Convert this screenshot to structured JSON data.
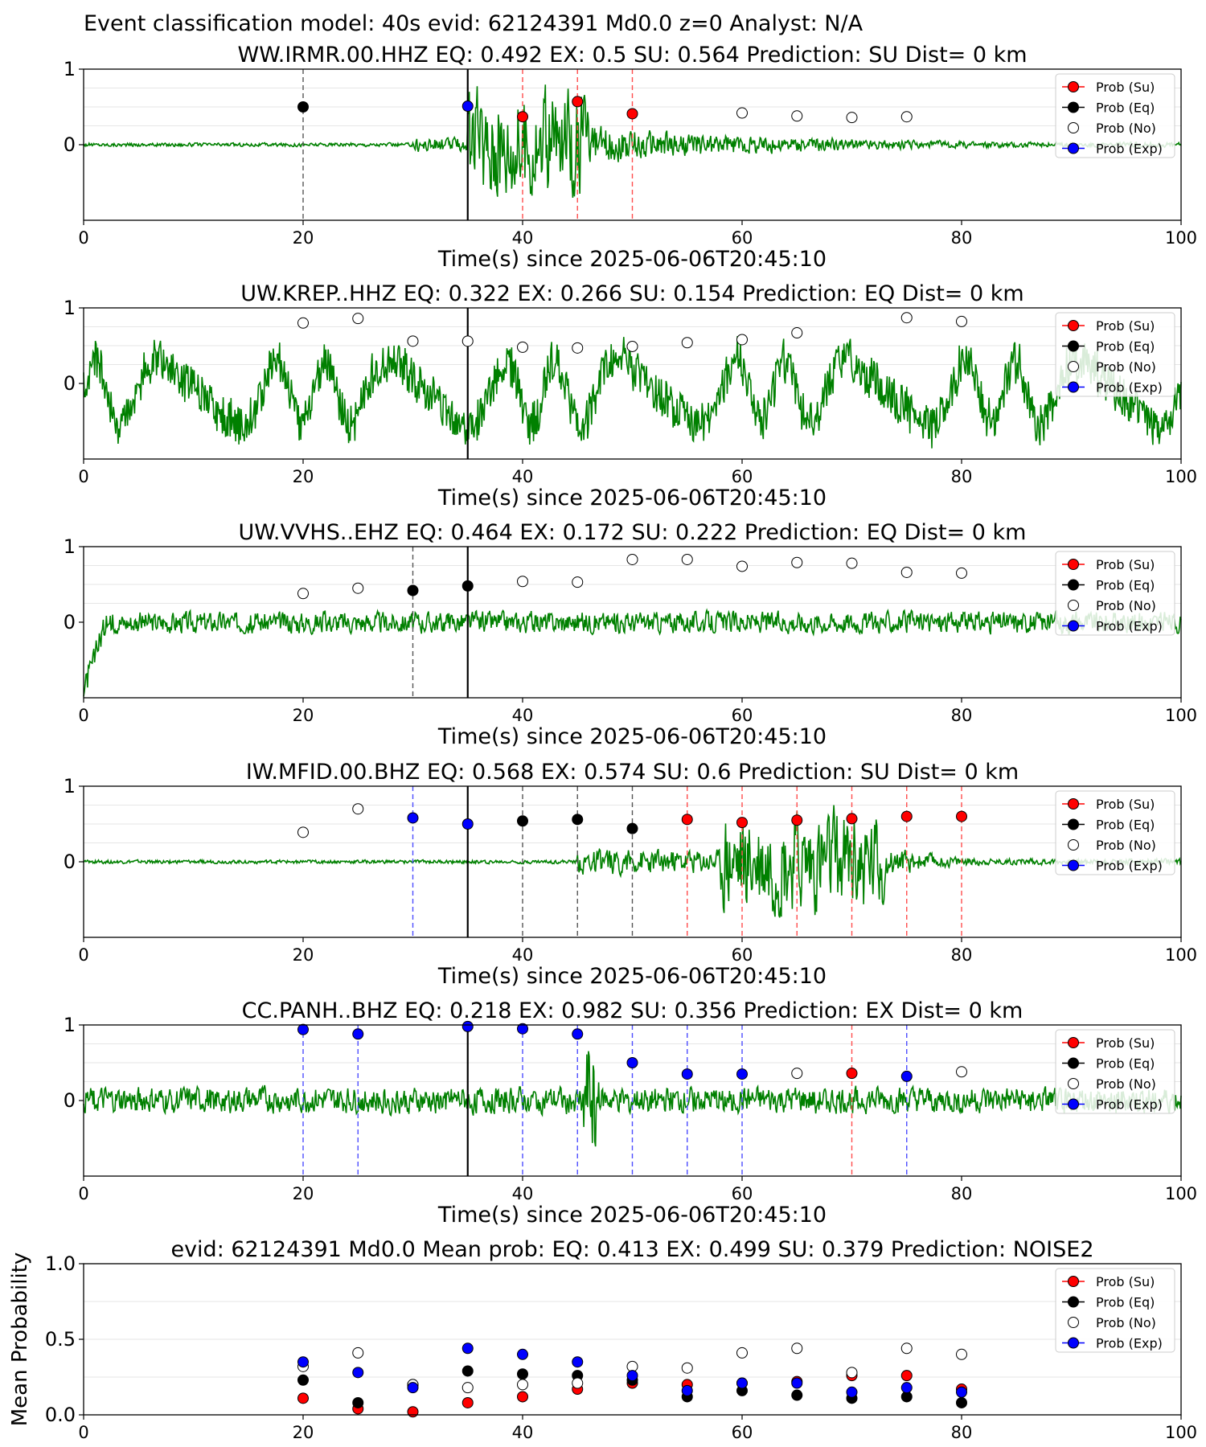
{
  "figure": {
    "suptitle": "Event classification model: 40s evid: 62124391 Md0.0 z=0 Analyst: N/A",
    "legend_labels": [
      "Prob (Su)",
      "Prob (Eq)",
      "Prob (No)",
      "Prob (Exp)"
    ],
    "colors": {
      "su": "#ff0000",
      "eq": "#000000",
      "no": "#ffffff",
      "exp": "#0000ff",
      "trace": "#008000",
      "trace_faded": "#b9dcb9"
    }
  },
  "chart_data": [
    {
      "type": "scatter",
      "title": "WW.IRMR.00.HHZ   EQ: 0.492  EX: 0.5  SU: 0.564   Prediction: SU    Dist= 0 km",
      "xlabel": "Time(s) since 2025-06-06T20:45:10",
      "xlim": [
        0,
        100
      ],
      "xticks": [
        0,
        20,
        40,
        60,
        80,
        100
      ],
      "ylim": [
        -1,
        1
      ],
      "yticks": [
        0,
        1
      ],
      "origin_line_x": 35,
      "trace": "green waveform, quiet until ~30 s, strong burst 35-45 s, decaying coda to ~75 s",
      "points": [
        {
          "x": 20,
          "y": 0.5,
          "class": "eq"
        },
        {
          "x": 35,
          "y": 0.51,
          "class": "exp"
        },
        {
          "x": 40,
          "y": 0.37,
          "class": "su"
        },
        {
          "x": 45,
          "y": 0.57,
          "class": "su"
        },
        {
          "x": 50,
          "y": 0.41,
          "class": "su"
        },
        {
          "x": 60,
          "y": 0.42,
          "class": "no"
        },
        {
          "x": 65,
          "y": 0.38,
          "class": "no"
        },
        {
          "x": 70,
          "y": 0.36,
          "class": "no"
        },
        {
          "x": 75,
          "y": 0.37,
          "class": "no"
        }
      ],
      "legend": [
        "Prob (Su)",
        "Prob (Eq)",
        "Prob (No)",
        "Prob (Exp)"
      ]
    },
    {
      "type": "scatter",
      "title": "UW.KREP..HHZ   EQ: 0.322  EX: 0.266  SU: 0.154   Prediction: EQ    Dist= 0 km",
      "xlabel": "Time(s) since 2025-06-06T20:45:10",
      "xlim": [
        0,
        100
      ],
      "xticks": [
        0,
        20,
        40,
        60,
        80,
        100
      ],
      "ylim": [
        -1,
        1
      ],
      "yticks": [
        0,
        1
      ],
      "origin_line_x": 35,
      "trace": "green waveform, large-amplitude noise throughout",
      "points": [
        {
          "x": 20,
          "y": 0.8,
          "class": "no"
        },
        {
          "x": 25,
          "y": 0.86,
          "class": "no"
        },
        {
          "x": 30,
          "y": 0.56,
          "class": "no"
        },
        {
          "x": 35,
          "y": 0.56,
          "class": "no"
        },
        {
          "x": 40,
          "y": 0.48,
          "class": "no"
        },
        {
          "x": 45,
          "y": 0.47,
          "class": "no"
        },
        {
          "x": 50,
          "y": 0.49,
          "class": "no"
        },
        {
          "x": 55,
          "y": 0.54,
          "class": "no"
        },
        {
          "x": 60,
          "y": 0.58,
          "class": "no"
        },
        {
          "x": 65,
          "y": 0.67,
          "class": "no"
        },
        {
          "x": 75,
          "y": 0.87,
          "class": "no"
        },
        {
          "x": 80,
          "y": 0.82,
          "class": "no"
        }
      ],
      "legend": [
        "Prob (Su)",
        "Prob (Eq)",
        "Prob (No)",
        "Prob (Exp)"
      ]
    },
    {
      "type": "scatter",
      "title": "UW.VVHS..EHZ   EQ: 0.464  EX: 0.172  SU: 0.222   Prediction: EQ    Dist= 0 km",
      "xlabel": "Time(s) since 2025-06-06T20:45:10",
      "xlim": [
        0,
        100
      ],
      "xticks": [
        0,
        20,
        40,
        60,
        80,
        100
      ],
      "ylim": [
        -1,
        1
      ],
      "yticks": [
        0,
        1
      ],
      "origin_line_x": 35,
      "trace": "green waveform, initial transient then moderate steady noise",
      "points": [
        {
          "x": 20,
          "y": 0.38,
          "class": "no"
        },
        {
          "x": 25,
          "y": 0.45,
          "class": "no"
        },
        {
          "x": 30,
          "y": 0.42,
          "class": "eq"
        },
        {
          "x": 35,
          "y": 0.48,
          "class": "eq"
        },
        {
          "x": 40,
          "y": 0.54,
          "class": "no"
        },
        {
          "x": 45,
          "y": 0.53,
          "class": "no"
        },
        {
          "x": 50,
          "y": 0.83,
          "class": "no"
        },
        {
          "x": 55,
          "y": 0.83,
          "class": "no"
        },
        {
          "x": 60,
          "y": 0.74,
          "class": "no"
        },
        {
          "x": 65,
          "y": 0.79,
          "class": "no"
        },
        {
          "x": 70,
          "y": 0.78,
          "class": "no"
        },
        {
          "x": 75,
          "y": 0.66,
          "class": "no"
        },
        {
          "x": 80,
          "y": 0.65,
          "class": "no"
        }
      ],
      "legend": [
        "Prob (Su)",
        "Prob (Eq)",
        "Prob (No)",
        "Prob (Exp)"
      ]
    },
    {
      "type": "scatter",
      "title": "IW.MFID.00.BHZ   EQ: 0.568  EX: 0.574  SU: 0.6   Prediction: SU    Dist= 0 km",
      "xlabel": "Time(s) since 2025-06-06T20:45:10",
      "xlim": [
        0,
        100
      ],
      "xticks": [
        0,
        20,
        40,
        60,
        80,
        100
      ],
      "ylim": [
        -1,
        1
      ],
      "yticks": [
        0,
        1
      ],
      "origin_line_x": 35,
      "trace": "green waveform, quiet until ~45 s, emergent signal peaking 60-72 s",
      "points": [
        {
          "x": 20,
          "y": 0.39,
          "class": "no"
        },
        {
          "x": 25,
          "y": 0.7,
          "class": "no"
        },
        {
          "x": 30,
          "y": 0.58,
          "class": "exp"
        },
        {
          "x": 35,
          "y": 0.5,
          "class": "exp"
        },
        {
          "x": 40,
          "y": 0.54,
          "class": "eq"
        },
        {
          "x": 45,
          "y": 0.56,
          "class": "eq"
        },
        {
          "x": 50,
          "y": 0.44,
          "class": "eq"
        },
        {
          "x": 55,
          "y": 0.56,
          "class": "su"
        },
        {
          "x": 60,
          "y": 0.52,
          "class": "su"
        },
        {
          "x": 65,
          "y": 0.55,
          "class": "su"
        },
        {
          "x": 70,
          "y": 0.57,
          "class": "su"
        },
        {
          "x": 75,
          "y": 0.6,
          "class": "su"
        },
        {
          "x": 80,
          "y": 0.6,
          "class": "su"
        }
      ],
      "legend": [
        "Prob (Su)",
        "Prob (Eq)",
        "Prob (No)",
        "Prob (Exp)"
      ]
    },
    {
      "type": "scatter",
      "title": "CC.PANH..BHZ   EQ: 0.218  EX: 0.982  SU: 0.356   Prediction: EX    Dist= 0 km",
      "xlabel": "Time(s) since 2025-06-06T20:45:10",
      "xlim": [
        0,
        100
      ],
      "xticks": [
        0,
        20,
        40,
        60,
        80,
        100
      ],
      "ylim": [
        -1,
        1
      ],
      "yticks": [
        0,
        1
      ],
      "origin_line_x": 35,
      "trace": "green waveform, moderate noise with spike near 46 s",
      "points": [
        {
          "x": 20,
          "y": 0.94,
          "class": "exp"
        },
        {
          "x": 25,
          "y": 0.88,
          "class": "exp"
        },
        {
          "x": 35,
          "y": 0.98,
          "class": "exp"
        },
        {
          "x": 40,
          "y": 0.95,
          "class": "exp"
        },
        {
          "x": 45,
          "y": 0.88,
          "class": "exp"
        },
        {
          "x": 50,
          "y": 0.5,
          "class": "exp"
        },
        {
          "x": 55,
          "y": 0.35,
          "class": "exp"
        },
        {
          "x": 60,
          "y": 0.35,
          "class": "exp"
        },
        {
          "x": 65,
          "y": 0.36,
          "class": "no"
        },
        {
          "x": 70,
          "y": 0.36,
          "class": "su"
        },
        {
          "x": 75,
          "y": 0.32,
          "class": "exp"
        },
        {
          "x": 80,
          "y": 0.38,
          "class": "no"
        }
      ],
      "legend": [
        "Prob (Su)",
        "Prob (Eq)",
        "Prob (No)",
        "Prob (Exp)"
      ]
    },
    {
      "type": "scatter",
      "title": "evid: 62124391  Md0.0   Mean prob:   EQ: 0.413  EX: 0.499  SU: 0.379   Prediction: NOISE2",
      "ylabel": "Mean Probability",
      "xlim": [
        0,
        100
      ],
      "xticks": [
        0,
        20,
        40,
        60,
        80,
        100
      ],
      "ylim": [
        0,
        1
      ],
      "yticks": [
        "0.0",
        "0.5",
        "1.0"
      ],
      "x": [
        20,
        25,
        30,
        35,
        40,
        45,
        50,
        55,
        60,
        65,
        70,
        75,
        80
      ],
      "series": [
        {
          "name": "Prob (Su)",
          "values": [
            0.11,
            0.04,
            0.02,
            0.08,
            0.12,
            0.17,
            0.21,
            0.2,
            0.21,
            0.22,
            0.26,
            0.26,
            0.17
          ]
        },
        {
          "name": "Prob (Eq)",
          "values": [
            0.23,
            0.08,
            0.2,
            0.29,
            0.27,
            0.26,
            0.23,
            0.12,
            0.16,
            0.13,
            0.11,
            0.12,
            0.08
          ]
        },
        {
          "name": "Prob (No)",
          "values": [
            0.32,
            0.41,
            0.2,
            0.18,
            0.2,
            0.21,
            0.32,
            0.31,
            0.41,
            0.44,
            0.28,
            0.44,
            0.4
          ]
        },
        {
          "name": "Prob (Exp)",
          "values": [
            0.35,
            0.28,
            0.18,
            0.44,
            0.4,
            0.35,
            0.26,
            0.16,
            0.21,
            0.21,
            0.15,
            0.18,
            0.15
          ]
        }
      ],
      "legend": [
        "Prob (Su)",
        "Prob (Eq)",
        "Prob (No)",
        "Prob (Exp)"
      ]
    }
  ]
}
